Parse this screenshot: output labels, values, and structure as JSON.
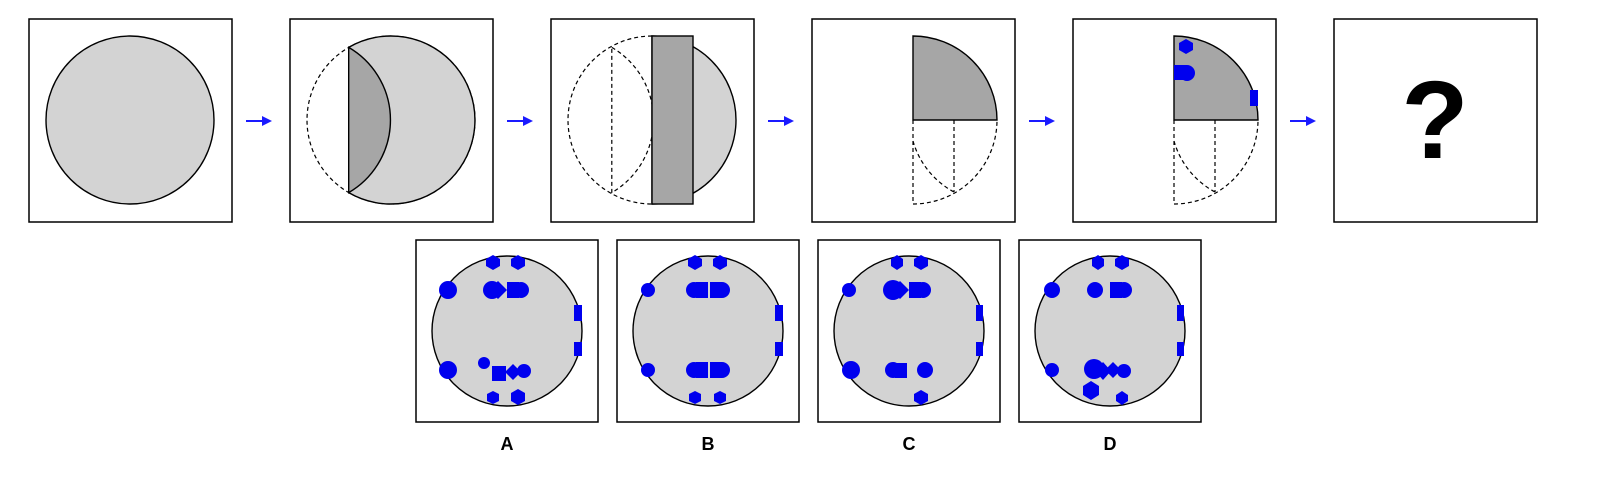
{
  "puzzle": {
    "question_mark": "?",
    "options": [
      {
        "label": "A"
      },
      {
        "label": "B"
      },
      {
        "label": "C"
      },
      {
        "label": "D"
      }
    ]
  },
  "colors": {
    "paper": "#d3d3d3",
    "fold_shade": "#a6a6a6",
    "hole": "#0000ee",
    "arrow": "#1a1aff",
    "outline": "#000000"
  },
  "icons": {
    "arrow": "right-arrow-icon",
    "hole": "punched-hole-icon"
  }
}
